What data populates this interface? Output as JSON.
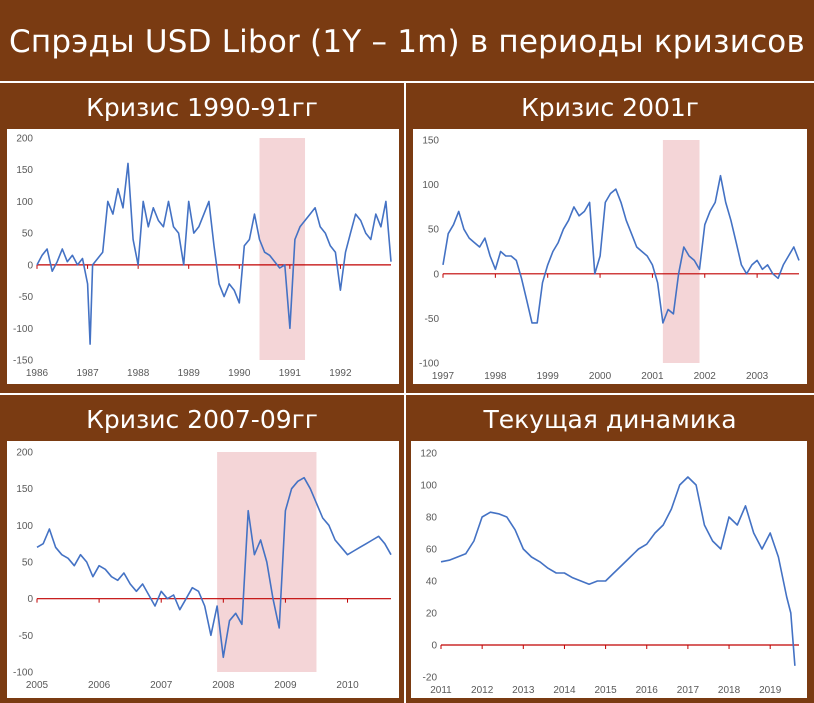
{
  "title": "Спрэды USD Libor (1Y – 1m) в периоды кризисов",
  "colors": {
    "background": "#7a3b12",
    "series": "#4472c4",
    "zero_line": "#c00000",
    "crisis_band": "#f4d5d7"
  },
  "chart_data": [
    {
      "type": "line",
      "panel_title": "Кризис 1990-91гг",
      "xlabels": [
        "1986",
        "1987",
        "1988",
        "1989",
        "1990",
        "1991",
        "1992"
      ],
      "ylabels": [
        "200",
        "150",
        "100",
        "50",
        "0",
        "-50",
        "-100",
        "-150"
      ],
      "xlim": [
        1986,
        1993
      ],
      "ylim": [
        -150,
        200
      ],
      "yticks": [
        200,
        150,
        100,
        50,
        0,
        -50,
        -100,
        -150
      ],
      "crisis_period": [
        1990.4,
        1991.3
      ],
      "x": [
        1986,
        1986.1,
        1986.2,
        1986.3,
        1986.4,
        1986.5,
        1986.6,
        1986.7,
        1986.8,
        1986.9,
        1987,
        1987.05,
        1987.1,
        1987.2,
        1987.3,
        1987.4,
        1987.5,
        1987.6,
        1987.7,
        1987.8,
        1987.9,
        1988,
        1988.1,
        1988.2,
        1988.3,
        1988.4,
        1988.5,
        1988.6,
        1988.7,
        1988.8,
        1988.9,
        1989,
        1989.1,
        1989.2,
        1989.3,
        1989.4,
        1989.5,
        1989.6,
        1989.7,
        1989.8,
        1989.9,
        1990,
        1990.1,
        1990.2,
        1990.3,
        1990.4,
        1990.5,
        1990.6,
        1990.7,
        1990.8,
        1990.9,
        1991,
        1991.1,
        1991.2,
        1991.3,
        1991.4,
        1991.5,
        1991.6,
        1991.7,
        1991.8,
        1991.9,
        1992,
        1992.1,
        1992.2,
        1992.3,
        1992.4,
        1992.5,
        1992.6,
        1992.7,
        1992.8,
        1992.9,
        1993
      ],
      "y": [
        0,
        15,
        25,
        -10,
        5,
        25,
        5,
        15,
        0,
        10,
        -30,
        -125,
        0,
        10,
        20,
        100,
        80,
        120,
        90,
        160,
        40,
        0,
        100,
        60,
        90,
        70,
        60,
        100,
        60,
        50,
        0,
        100,
        50,
        60,
        80,
        100,
        30,
        -30,
        -50,
        -30,
        -40,
        -60,
        30,
        40,
        80,
        40,
        20,
        15,
        5,
        -5,
        0,
        -100,
        40,
        60,
        70,
        80,
        90,
        60,
        50,
        30,
        20,
        -40,
        20,
        50,
        80,
        70,
        50,
        40,
        80,
        60,
        100,
        5
      ]
    },
    {
      "type": "line",
      "panel_title": "Кризис 2001г",
      "xlabels": [
        "1997",
        "1998",
        "1999",
        "2000",
        "2001",
        "2002",
        "2003"
      ],
      "ylabels": [
        "150",
        "100",
        "50",
        "0",
        "-50",
        "-100"
      ],
      "xlim": [
        1997,
        2003.8
      ],
      "ylim": [
        -100,
        150
      ],
      "yticks": [
        150,
        100,
        50,
        0,
        -50,
        -100
      ],
      "crisis_period": [
        2001.2,
        2001.9
      ],
      "x": [
        1997,
        1997.1,
        1997.2,
        1997.3,
        1997.4,
        1997.5,
        1997.6,
        1997.7,
        1997.8,
        1997.9,
        1998,
        1998.1,
        1998.2,
        1998.3,
        1998.4,
        1998.5,
        1998.6,
        1998.7,
        1998.8,
        1998.9,
        1999,
        1999.1,
        1999.2,
        1999.3,
        1999.4,
        1999.5,
        1999.6,
        1999.7,
        1999.8,
        1999.9,
        2000,
        2000.1,
        2000.2,
        2000.3,
        2000.4,
        2000.5,
        2000.6,
        2000.7,
        2000.8,
        2000.9,
        2001,
        2001.1,
        2001.2,
        2001.3,
        2001.4,
        2001.5,
        2001.6,
        2001.7,
        2001.8,
        2001.9,
        2002,
        2002.1,
        2002.2,
        2002.3,
        2002.4,
        2002.5,
        2002.6,
        2002.7,
        2002.8,
        2002.9,
        2003,
        2003.1,
        2003.2,
        2003.3,
        2003.4,
        2003.5,
        2003.6,
        2003.7,
        2003.8
      ],
      "y": [
        10,
        45,
        55,
        70,
        50,
        40,
        35,
        30,
        40,
        20,
        5,
        25,
        20,
        20,
        15,
        -5,
        -30,
        -55,
        -55,
        -10,
        10,
        25,
        35,
        50,
        60,
        75,
        65,
        70,
        80,
        0,
        20,
        80,
        90,
        95,
        80,
        60,
        45,
        30,
        25,
        20,
        10,
        -10,
        -55,
        -40,
        -45,
        0,
        30,
        20,
        15,
        5,
        55,
        70,
        80,
        110,
        80,
        60,
        35,
        10,
        0,
        10,
        15,
        5,
        10,
        0,
        -5,
        10,
        20,
        30,
        15
      ]
    },
    {
      "type": "line",
      "panel_title": "Кризис 2007-09гг",
      "xlabels": [
        "2005",
        "2006",
        "2007",
        "2008",
        "2009",
        "2010"
      ],
      "ylabels": [
        "200",
        "150",
        "100",
        "50",
        "0",
        "-50",
        "-100"
      ],
      "xlim": [
        2005,
        2010.7
      ],
      "ylim": [
        -100,
        200
      ],
      "yticks": [
        200,
        150,
        100,
        50,
        0,
        -50,
        -100
      ],
      "crisis_period": [
        2007.9,
        2009.5
      ],
      "x": [
        2005,
        2005.1,
        2005.2,
        2005.3,
        2005.4,
        2005.5,
        2005.6,
        2005.7,
        2005.8,
        2005.9,
        2006,
        2006.1,
        2006.2,
        2006.3,
        2006.4,
        2006.5,
        2006.6,
        2006.7,
        2006.8,
        2006.9,
        2007,
        2007.1,
        2007.2,
        2007.3,
        2007.4,
        2007.5,
        2007.6,
        2007.7,
        2007.8,
        2007.9,
        2008,
        2008.1,
        2008.2,
        2008.3,
        2008.4,
        2008.5,
        2008.6,
        2008.7,
        2008.8,
        2008.9,
        2009,
        2009.1,
        2009.2,
        2009.3,
        2009.4,
        2009.5,
        2009.6,
        2009.7,
        2009.8,
        2009.9,
        2010,
        2010.1,
        2010.2,
        2010.3,
        2010.4,
        2010.5,
        2010.6,
        2010.7
      ],
      "y": [
        70,
        75,
        95,
        70,
        60,
        55,
        45,
        60,
        50,
        30,
        45,
        40,
        30,
        25,
        35,
        20,
        10,
        20,
        5,
        -10,
        10,
        0,
        5,
        -15,
        0,
        15,
        10,
        -10,
        -50,
        -10,
        -80,
        -30,
        -20,
        -35,
        120,
        60,
        80,
        50,
        0,
        -40,
        120,
        150,
        160,
        165,
        150,
        130,
        110,
        100,
        80,
        70,
        60,
        65,
        70,
        75,
        80,
        85,
        75,
        60
      ]
    },
    {
      "type": "line",
      "panel_title": "Текущая динамика",
      "xlabels": [
        "2011",
        "2012",
        "2013",
        "2014",
        "2015",
        "2016",
        "2017",
        "2018",
        "2019"
      ],
      "ylabels": [
        "120",
        "100",
        "80",
        "60",
        "40",
        "20",
        "0",
        "-20"
      ],
      "xlim": [
        2011,
        2019.7
      ],
      "ylim": [
        -20,
        120
      ],
      "yticks": [
        120,
        100,
        80,
        60,
        40,
        20,
        0,
        -20
      ],
      "crisis_period": [],
      "x": [
        2011,
        2011.2,
        2011.4,
        2011.6,
        2011.8,
        2012,
        2012.2,
        2012.4,
        2012.6,
        2012.8,
        2013,
        2013.2,
        2013.4,
        2013.6,
        2013.8,
        2014,
        2014.2,
        2014.4,
        2014.6,
        2014.8,
        2015,
        2015.2,
        2015.4,
        2015.6,
        2015.8,
        2016,
        2016.2,
        2016.4,
        2016.6,
        2016.8,
        2017,
        2017.2,
        2017.4,
        2017.6,
        2017.8,
        2018,
        2018.2,
        2018.4,
        2018.6,
        2018.8,
        2019,
        2019.2,
        2019.4,
        2019.5,
        2019.6
      ],
      "y": [
        52,
        53,
        55,
        57,
        65,
        80,
        83,
        82,
        80,
        72,
        60,
        55,
        52,
        48,
        45,
        45,
        42,
        40,
        38,
        40,
        40,
        45,
        50,
        55,
        60,
        63,
        70,
        75,
        85,
        100,
        105,
        100,
        75,
        65,
        60,
        80,
        75,
        87,
        70,
        60,
        70,
        55,
        30,
        20,
        -13
      ]
    }
  ]
}
